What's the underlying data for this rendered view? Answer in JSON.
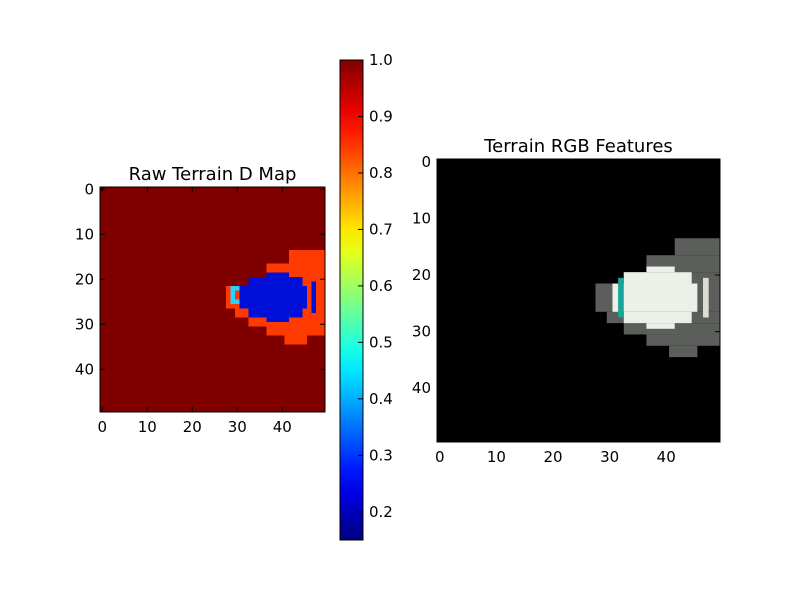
{
  "chart_data": [
    {
      "type": "heatmap",
      "title": "Raw Terrain D Map",
      "colormap": "jet",
      "xlim": [
        0,
        49
      ],
      "ylim": [
        49,
        0
      ],
      "xticks": [
        0,
        10,
        20,
        30,
        40
      ],
      "yticks": [
        0,
        10,
        20,
        30,
        40
      ],
      "background_value": 1.0,
      "regions": [
        {
          "label": "outer ring",
          "value": 0.9,
          "color": "#ff3a00",
          "rows": [
            [
              14,
              16,
              42,
              49
            ],
            [
              17,
              19,
              37,
              49
            ],
            [
              20,
              21,
              33,
              49
            ],
            [
              22,
              24,
              28,
              49
            ],
            [
              25,
              26,
              28,
              49
            ],
            [
              27,
              28,
              30,
              49
            ],
            [
              29,
              30,
              33,
              49
            ],
            [
              31,
              32,
              37,
              49
            ],
            [
              33,
              34,
              41,
              45
            ]
          ]
        },
        {
          "label": "inner core",
          "value": 0.18,
          "color": "#0010d8",
          "rows": [
            [
              19,
              19,
              37,
              41
            ],
            [
              20,
              21,
              33,
              44
            ],
            [
              22,
              26,
              31,
              45
            ],
            [
              27,
              28,
              33,
              44
            ],
            [
              29,
              29,
              37,
              41
            ]
          ]
        },
        {
          "label": "edge highlights",
          "value": 0.5,
          "color": "#2ad0ff",
          "rows": [
            [
              22,
              22,
              29,
              30
            ],
            [
              23,
              24,
              29,
              29
            ],
            [
              25,
              25,
              29,
              30
            ]
          ]
        },
        {
          "label": "right notch",
          "value": 0.2,
          "color": "#0010d8",
          "rows": [
            [
              21,
              27,
              47,
              47
            ]
          ]
        }
      ]
    },
    {
      "type": "colorbar",
      "colormap": "jet",
      "range": [
        0.15,
        1.0
      ],
      "ticks": [
        "0.2",
        "0.3",
        "0.4",
        "0.5",
        "0.6",
        "0.7",
        "0.8",
        "0.9",
        "1.0"
      ],
      "tick_values": [
        0.2,
        0.3,
        0.4,
        0.5,
        0.6,
        0.7,
        0.8,
        0.9,
        1.0
      ]
    },
    {
      "type": "heatmap",
      "title": "Terrain RGB Features",
      "colormap": "rgb",
      "xlim": [
        0,
        49
      ],
      "ylim": [
        49,
        0
      ],
      "xticks": [
        0,
        10,
        20,
        30,
        40
      ],
      "yticks": [
        0,
        10,
        20,
        30,
        40
      ],
      "background_color": "#000000",
      "regions": [
        {
          "label": "outer ring",
          "color": "#5c5e5c",
          "rows": [
            [
              14,
              16,
              42,
              49
            ],
            [
              17,
              19,
              37,
              49
            ],
            [
              20,
              21,
              33,
              49
            ],
            [
              22,
              24,
              28,
              49
            ],
            [
              25,
              26,
              28,
              49
            ],
            [
              27,
              28,
              30,
              49
            ],
            [
              29,
              30,
              33,
              49
            ],
            [
              31,
              32,
              37,
              49
            ],
            [
              33,
              34,
              41,
              45
            ]
          ]
        },
        {
          "label": "inner core",
          "color": "#ecf0e8",
          "rows": [
            [
              19,
              19,
              37,
              41
            ],
            [
              20,
              21,
              33,
              44
            ],
            [
              22,
              26,
              31,
              45
            ],
            [
              27,
              28,
              33,
              44
            ],
            [
              29,
              29,
              37,
              41
            ]
          ]
        },
        {
          "label": "teal band",
          "color": "#1aa59a",
          "rows": [
            [
              21,
              27,
              32,
              32
            ]
          ]
        },
        {
          "label": "right notch",
          "color": "#dcdcd4",
          "rows": [
            [
              21,
              27,
              47,
              47
            ]
          ]
        }
      ]
    }
  ]
}
